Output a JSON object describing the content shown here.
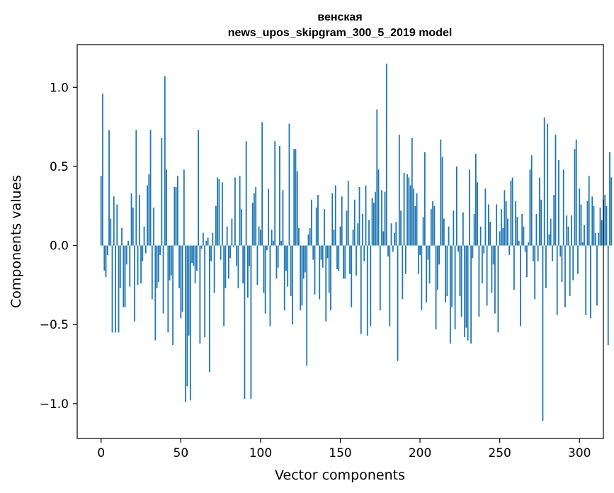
{
  "chart_data": {
    "type": "bar",
    "title": "венская\nnews_upos_skipgram_300_5_2019 model",
    "title_lines": [
      "венская",
      "news_upos_skipgram_300_5_2019 model"
    ],
    "xlabel": "Vector components",
    "ylabel": "Components values",
    "xlim": [
      -15,
      315
    ],
    "ylim": [
      -1.22,
      1.27
    ],
    "xticks": [
      0,
      50,
      100,
      150,
      200,
      250,
      300
    ],
    "xtick_labels": [
      "0",
      "50",
      "100",
      "150",
      "200",
      "250",
      "300"
    ],
    "yticks": [
      -1.0,
      -0.5,
      0.0,
      0.5,
      1.0
    ],
    "ytick_labels": [
      "−1.0",
      "−0.5",
      "0.0",
      "0.5",
      "1.0"
    ],
    "grid": false,
    "bar_color": "#1f77b4",
    "x_start": 0,
    "values": [
      0.44,
      0.96,
      -0.16,
      -0.2,
      -0.06,
      0.73,
      0.17,
      -0.55,
      0.31,
      -0.55,
      0.26,
      -0.55,
      -0.27,
      0.11,
      -0.39,
      -0.39,
      -0.12,
      0.03,
      -0.26,
      0.33,
      0.24,
      -0.48,
      0.73,
      -0.25,
      0.32,
      -0.24,
      -0.1,
      0.12,
      -0.05,
      0.38,
      0.45,
      0.73,
      -0.34,
      0.24,
      -0.6,
      -0.27,
      -0.23,
      -0.06,
      0.68,
      -0.43,
      1.07,
      0.48,
      -0.55,
      -0.22,
      -0.19,
      -0.63,
      0.37,
      0.37,
      0.44,
      -0.27,
      -0.46,
      -0.42,
      0.48,
      -0.99,
      -0.89,
      -0.57,
      -0.98,
      -0.11,
      -0.13,
      -0.24,
      -0.16,
      0.73,
      -0.62,
      -0.02,
      0.08,
      -0.58,
      0.03,
      0.05,
      -0.8,
      -0.1,
      0.08,
      -0.3,
      0.25,
      0.43,
      0.42,
      -0.09,
      0.4,
      -0.51,
      -0.27,
      0.12,
      -0.21,
      -0.08,
      0.17,
      -0.01,
      0.43,
      -0.13,
      -0.27,
      0.44,
      0.23,
      -0.24,
      -0.97,
      0.66,
      -0.33,
      -0.13,
      -0.97,
      0.27,
      0.33,
      0.37,
      -0.25,
      0.12,
      0.1,
      0.78,
      -0.3,
      -0.43,
      -0.03,
      0.36,
      -0.51,
      0.1,
      0.03,
      0.66,
      -0.21,
      -0.14,
      0.63,
      0.03,
      0.35,
      -0.41,
      -0.16,
      -0.26,
      0.77,
      -0.32,
      -0.5,
      0.61,
      0.61,
      0.47,
      0.11,
      -0.41,
      -0.38,
      -0.21,
      -0.17,
      -0.76,
      0.07,
      0.11,
      0.29,
      -0.09,
      -0.31,
      0.24,
      0.32,
      -0.34,
      -0.09,
      -0.14,
      0.23,
      -0.48,
      -0.08,
      -0.3,
      -0.41,
      0.33,
      0.1,
      0.38,
      -0.15,
      -0.16,
      0.12,
      0.31,
      -0.21,
      -0.21,
      0.22,
      0.41,
      -0.18,
      -0.39,
      0.1,
      0.29,
      -0.19,
      0.14,
      0.37,
      -0.56,
      0.2,
      -0.1,
      0.38,
      -0.57,
      0.16,
      -0.51,
      0.3,
      0.27,
      0.34,
      0.86,
      0.48,
      -0.41,
      0.35,
      0.09,
      0.34,
      1.15,
      -0.07,
      -0.51,
      0.14,
      -0.04,
      0.08,
      0.15,
      -0.73,
      0.7,
      0.22,
      -0.34,
      0.46,
      -0.18,
      0.45,
      0.43,
      0.38,
      0.68,
      0.36,
      0.25,
      0.33,
      -0.18,
      -0.06,
      -0.41,
      0.18,
      0.59,
      -0.36,
      -0.09,
      -0.24,
      0.23,
      0.28,
      0.25,
      -0.53,
      -0.28,
      -0.12,
      0.67,
      0.56,
      0.17,
      -0.36,
      -0.32,
      0.12,
      -0.62,
      -0.39,
      0.22,
      -0.53,
      0.5,
      -0.04,
      -0.32,
      -0.45,
      0.21,
      -0.58,
      -0.52,
      -0.6,
      0.48,
      -0.62,
      -0.08,
      0.2,
      0.58,
      0.4,
      -0.45,
      0.12,
      -0.24,
      -0.05,
      0.36,
      -0.38,
      0.26,
      0.15,
      -0.3,
      -0.12,
      -0.43,
      0.26,
      -0.55,
      0.09,
      0.23,
      0.11,
      0.35,
      0.28,
      0.17,
      -0.06,
      0.41,
      0.43,
      -0.28,
      0.28,
      0.18,
      0.03,
      -0.51,
      0.2,
      0.12,
      -0.04,
      -0.2,
      0.02,
      0.48,
      0.57,
      -0.1,
      -0.34,
      0.2,
      -0.1,
      0.43,
      0.29,
      -1.11,
      0.81,
      -0.27,
      0.77,
      0.07,
      0.17,
      -0.1,
      0.32,
      0.7,
      -0.44,
      0.54,
      -0.07,
      -0.23,
      0.48,
      -0.39,
      0.19,
      0.12,
      -0.32,
      0.19,
      -0.22,
      0.61,
      0.67,
      -0.18,
      0.36,
      0.26,
      0.02,
      0.13,
      -0.44,
      0.28,
      0.44,
      -0.46,
      0.31,
      0.25,
      0.08,
      -0.38,
      0.08,
      0.24,
      0.16,
      0.29,
      0.32,
      0.25,
      -0.63,
      0.59,
      0.43
    ]
  }
}
